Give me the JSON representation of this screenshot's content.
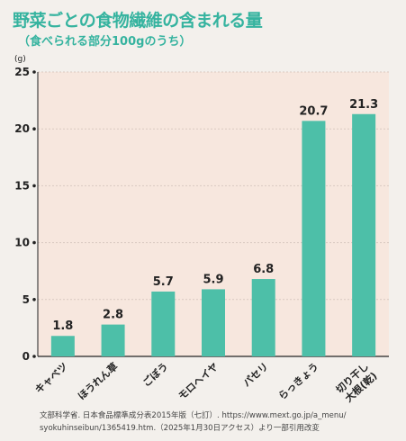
{
  "title": "野菜ごとの食物繊維の含まれる量",
  "subtitle": "（食べられる部分100gのうち）",
  "chart_data": {
    "type": "bar",
    "unit_label": "(g)",
    "categories": [
      "キャベツ",
      "ほうれん草",
      "ごぼう",
      "モロヘイヤ",
      "パセリ",
      "らっきょう",
      "切り干し大根(乾)"
    ],
    "category_lines": [
      [
        "キャベツ"
      ],
      [
        "ほうれん草"
      ],
      [
        "ごぼう"
      ],
      [
        "モロヘイヤ"
      ],
      [
        "パセリ"
      ],
      [
        "らっきょう"
      ],
      [
        "切り干し",
        "大根(乾)"
      ]
    ],
    "values": [
      1.8,
      2.8,
      5.7,
      5.9,
      6.8,
      20.7,
      21.3
    ],
    "value_labels": [
      "1.8",
      "2.8",
      "5.7",
      "5.9",
      "6.8",
      "20.7",
      "21.3"
    ],
    "yticks": [
      "0",
      "5",
      "10",
      "15",
      "20",
      "25"
    ],
    "ylim": [
      0,
      25
    ],
    "grid": true,
    "colors": {
      "bar": "#4dbfa8",
      "plot_bg": "#f7e7de",
      "grid": "#d9c9c0",
      "axis": "#222222"
    }
  },
  "source": {
    "line1": "文部科学省. 日本食品標準成分表2015年版（七訂）. https://www.mext.go.jp/a_menu/",
    "line2": "syokuhinseibun/1365419.htm.（2025年1月30日アクセス）より一部引用改変"
  }
}
